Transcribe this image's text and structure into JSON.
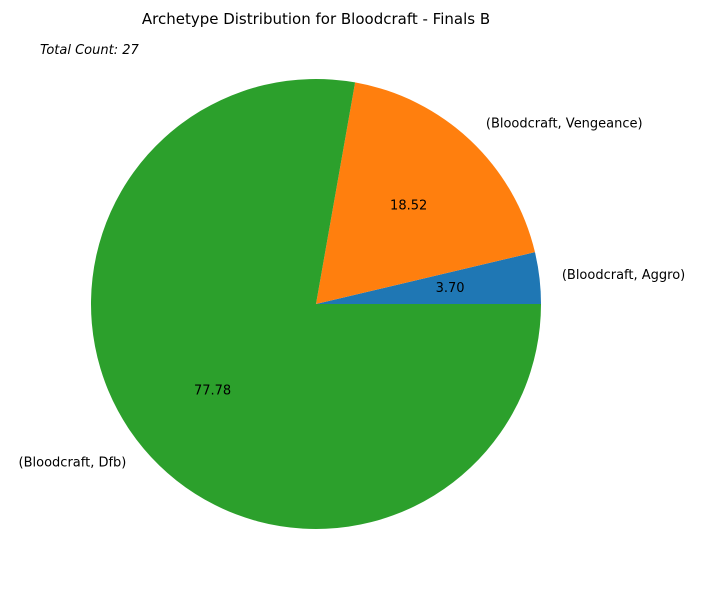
{
  "chart_data": {
    "type": "pie",
    "title": "Archetype Distribution for Bloodcraft - Finals B",
    "annotation": "Total Count: 27",
    "categories": [
      "(Bloodcraft, Aggro)",
      "(Bloodcraft, Vengeance)",
      "(Bloodcraft, Dfb)"
    ],
    "values": [
      3.7,
      18.52,
      77.78
    ],
    "value_labels": [
      "3.70",
      "18.52",
      "77.78"
    ],
    "colors": [
      "#1f77b4",
      "#ff7f0e",
      "#2ca02c"
    ],
    "start_angle_deg": 0,
    "direction": "counterclockwise",
    "legend": "none"
  }
}
